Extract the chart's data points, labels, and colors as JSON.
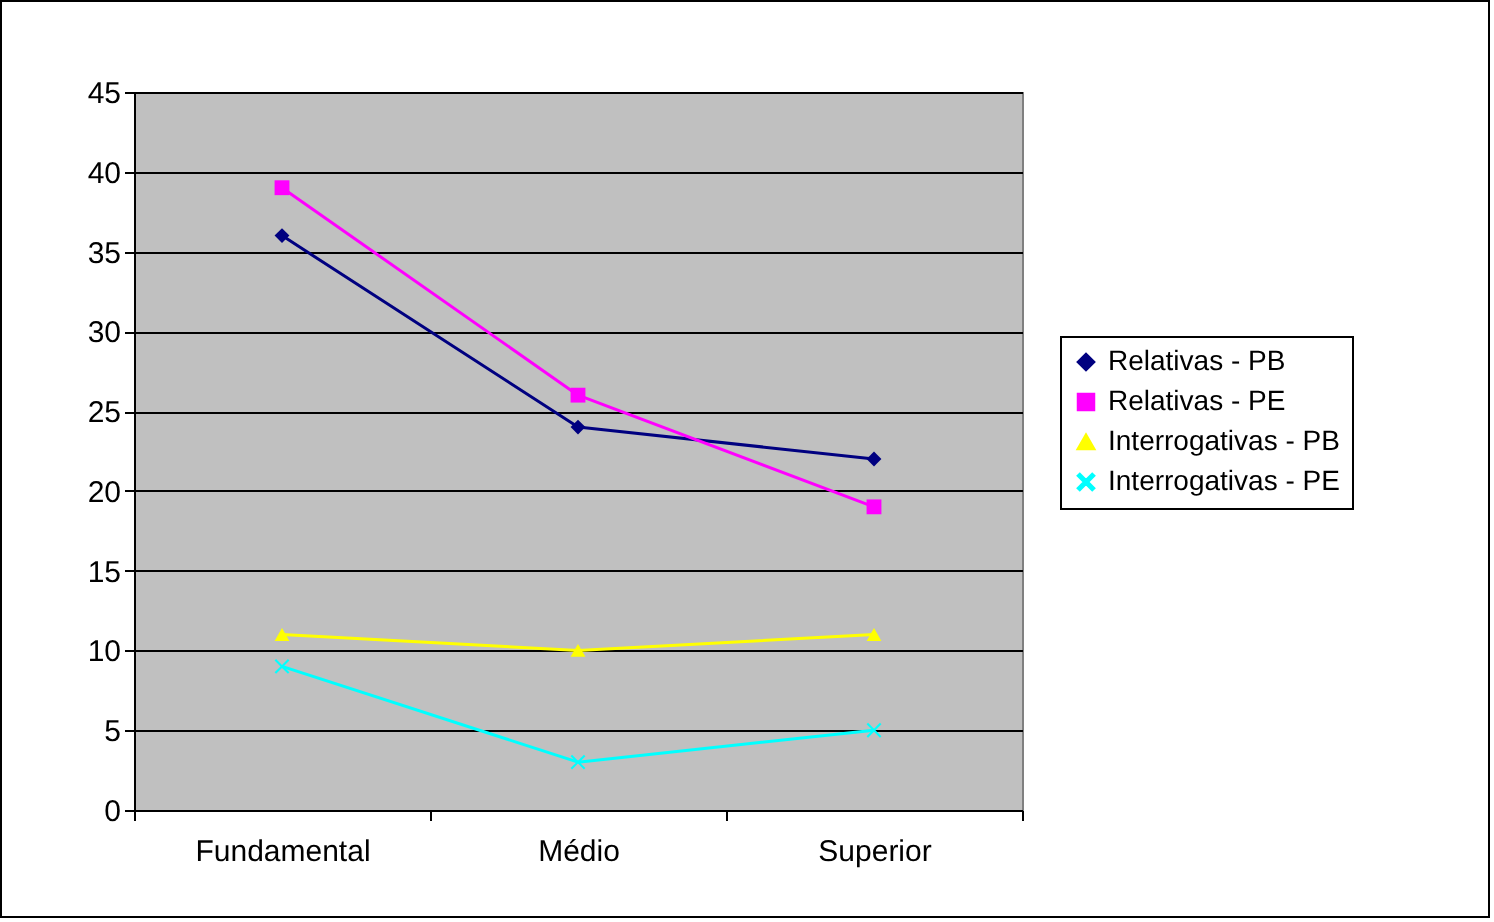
{
  "chart_data": {
    "type": "line",
    "categories": [
      "Fundamental",
      "Médio",
      "Superior"
    ],
    "series": [
      {
        "name": "Relativas - PB",
        "color": "#000080",
        "marker": "diamond",
        "values": [
          36,
          24,
          22
        ]
      },
      {
        "name": "Relativas - PE",
        "color": "#ff00ff",
        "marker": "square",
        "values": [
          39,
          26,
          19
        ]
      },
      {
        "name": "Interrogativas - PB",
        "color": "#ffff00",
        "marker": "triangle",
        "values": [
          11,
          10,
          11
        ]
      },
      {
        "name": "Interrogativas - PE",
        "color": "#00ffff",
        "marker": "cross",
        "values": [
          9,
          3,
          5
        ]
      }
    ],
    "ylim": [
      0,
      45
    ],
    "yticks": [
      0,
      5,
      10,
      15,
      20,
      25,
      30,
      35,
      40,
      45
    ],
    "grid": "y",
    "legend": "right"
  }
}
